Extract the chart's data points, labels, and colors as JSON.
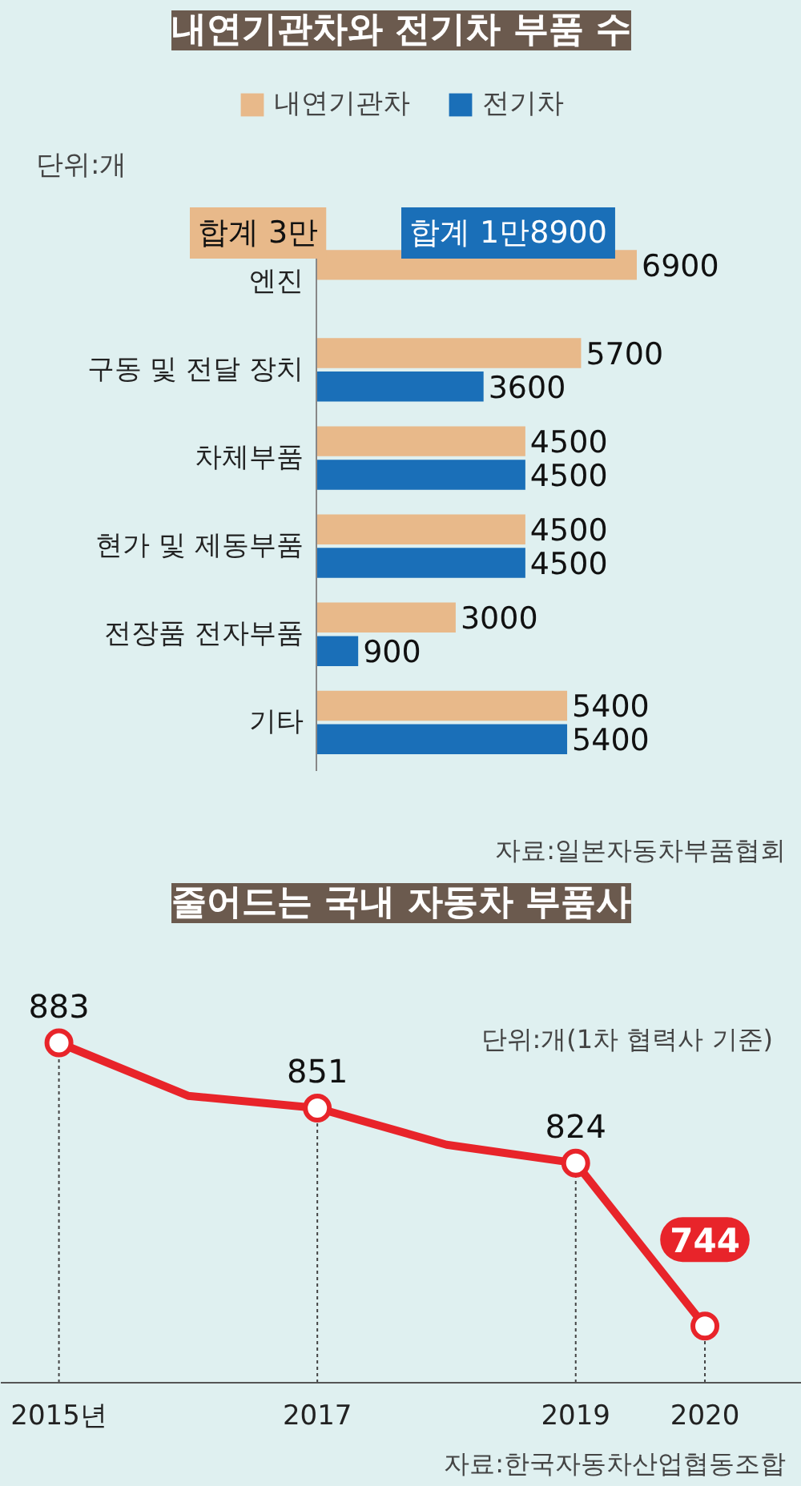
{
  "chart_data": [
    {
      "type": "bar",
      "orientation": "horizontal",
      "title": "내연기관차와 전기차 부품 수",
      "categories": [
        "엔진",
        "구동 및 전달 장치",
        "차체부품",
        "현가 및 제동부품",
        "전장품 전자부품",
        "기타"
      ],
      "series": [
        {
          "name": "내연기관차",
          "color": "#e8b98a",
          "values": [
            6900,
            5700,
            4500,
            4500,
            3000,
            5400
          ]
        },
        {
          "name": "전기차",
          "color": "#1a6fb8",
          "values": [
            null,
            3600,
            4500,
            4500,
            900,
            5400
          ]
        }
      ],
      "data_labels": true,
      "legend": "top",
      "annotations": [
        "단위:개",
        "합계 3만",
        "합계 1만8900",
        "자료:일본자동차부품협회"
      ]
    },
    {
      "type": "line",
      "title": "줄어드는 국내 자동차 부품사",
      "x": [
        2015,
        2016,
        2017,
        2018,
        2019,
        2020
      ],
      "series": [
        {
          "color": "#e8242a",
          "values": [
            883,
            857,
            851,
            833,
            824,
            744
          ],
          "value_labels": [
            "883",
            null,
            "851",
            null,
            "824",
            "744"
          ]
        }
      ],
      "xlim": [
        2014.55,
        2020.75
      ],
      "xticks": [
        {
          "value": 2015,
          "label": "2015년"
        },
        2017,
        2019,
        2020
      ],
      "grid": "x",
      "marker": "circle",
      "line_style": "solid",
      "annotations": [
        "단위:개(1차 협력사 기준)",
        "자료:한국자동차산업협동조합"
      ]
    }
  ]
}
